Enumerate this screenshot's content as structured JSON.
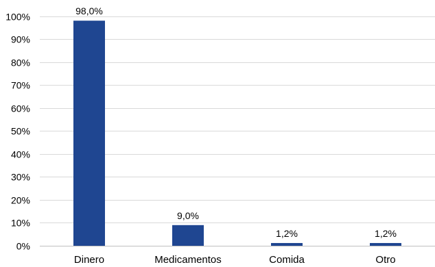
{
  "chart_data": {
    "type": "bar",
    "categories": [
      "Dinero",
      "Medicamentos",
      "Comida",
      "Otro"
    ],
    "values": [
      98.0,
      9.0,
      1.2,
      1.2
    ],
    "data_labels": [
      "98,0%",
      "9,0%",
      "1,2%",
      "1,2%"
    ],
    "title": "",
    "xlabel": "",
    "ylabel": "",
    "ylim": [
      0,
      100
    ],
    "y_ticks": [
      0,
      10,
      20,
      30,
      40,
      50,
      60,
      70,
      80,
      90,
      100
    ],
    "y_tick_labels": [
      "0%",
      "10%",
      "20%",
      "30%",
      "40%",
      "50%",
      "60%",
      "70%",
      "80%",
      "90%",
      "100%"
    ],
    "grid": true,
    "legend": "none",
    "bar_color": "#1f4691"
  }
}
